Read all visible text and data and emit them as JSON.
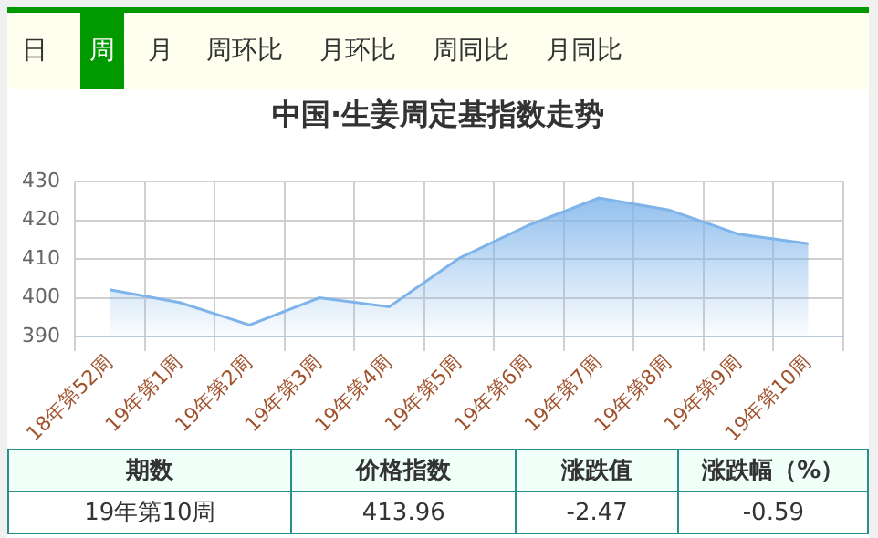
{
  "chart_data": {
    "type": "area",
    "title": "中国·生姜周定基指数走势",
    "categories": [
      "18年第52周",
      "19年第1周",
      "19年第2周",
      "19年第3周",
      "19年第4周",
      "19年第5周",
      "19年第6周",
      "19年第7周",
      "19年第8周",
      "19年第9周",
      "19年第10周"
    ],
    "series": [
      {
        "color": "#7eb4ea",
        "values": [
          402.1,
          398.8,
          393.0,
          400.0,
          397.7,
          410.2,
          418.8,
          425.8,
          422.7,
          416.43,
          413.96
        ]
      }
    ],
    "ylim": [
      390,
      430
    ],
    "yticks": [
      390,
      400,
      410,
      420,
      430
    ],
    "grid": true,
    "legend": false,
    "annotations": [
      "日",
      "周",
      "月",
      "周环比",
      "月环比",
      "周同比",
      "月同比",
      "期数",
      "价格指数",
      "涨跌值",
      "涨跌幅（%）",
      "19年第10周",
      "413.96",
      "-2.47",
      "-0.59"
    ]
  }
}
